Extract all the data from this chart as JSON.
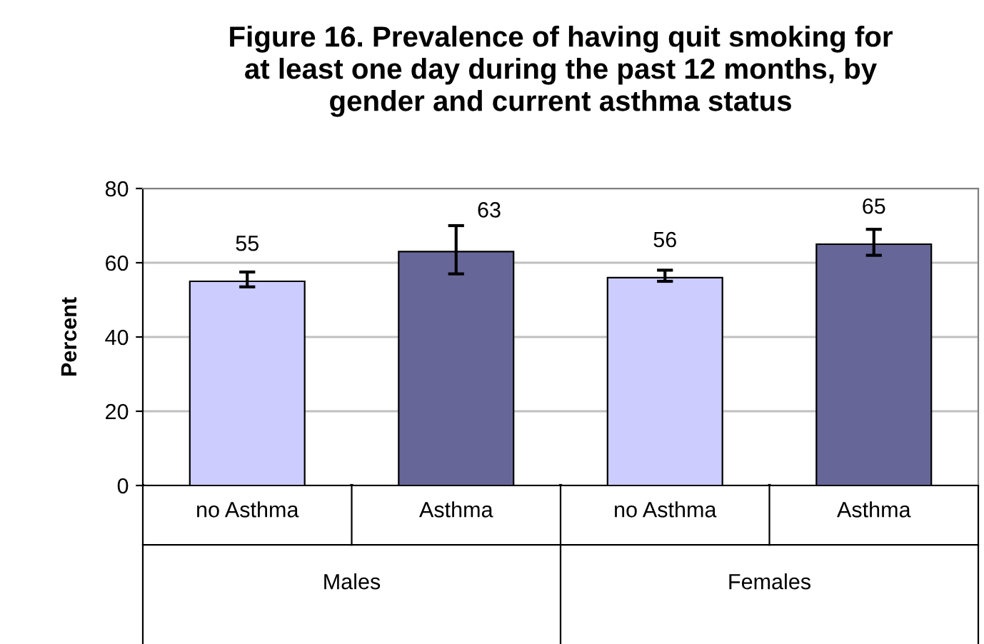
{
  "chart_data": {
    "type": "bar",
    "title": "Figure 16. Prevalence of having quit smoking for\nat least one day during the past 12 months, by\ngender and current asthma status",
    "ylabel": "Percent",
    "categories": [
      "no Asthma",
      "Asthma",
      "no Asthma",
      "Asthma"
    ],
    "values": [
      55,
      63,
      56,
      65
    ],
    "colors": [
      "#ccccff",
      "#666699",
      "#ccccff",
      "#666699"
    ],
    "errors": [
      [
        53.5,
        57.5
      ],
      [
        57,
        70
      ],
      [
        55,
        58
      ],
      [
        62,
        69
      ]
    ],
    "data_labels": true,
    "annotations": [
      "Males",
      "Females"
    ],
    "ylim": [
      0,
      80
    ],
    "yticks": [
      0,
      20,
      40,
      60,
      80
    ],
    "grid": "y"
  }
}
